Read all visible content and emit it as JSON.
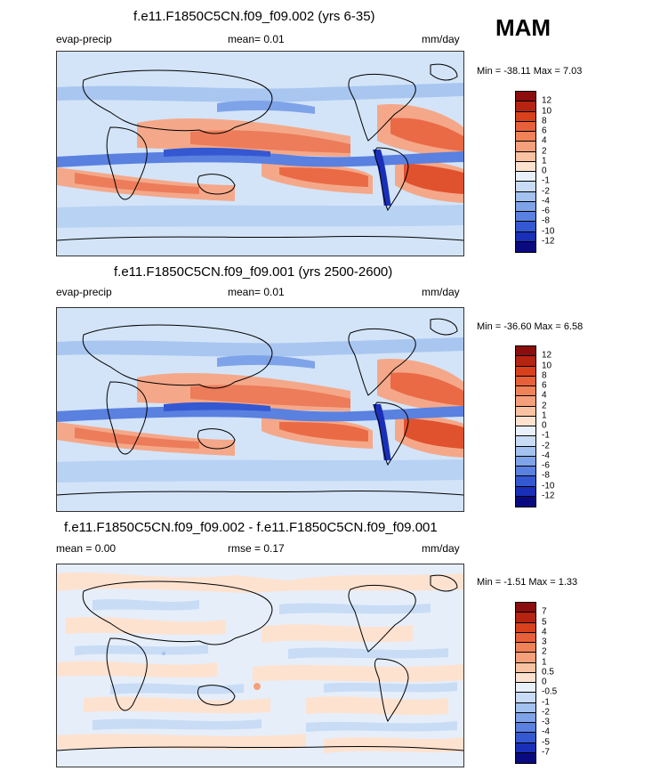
{
  "season": "MAM",
  "panels": [
    {
      "title": "f.e11.F1850C5CN.f09_f09.002 (yrs 6-35)",
      "left_label": "evap-precip",
      "mid_label": "mean=   0.01",
      "units": "mm/day",
      "minmax": "Min = -38.11 Max =   7.03",
      "colorbar": {
        "levels": [
          "12",
          "10",
          "8",
          "6",
          "4",
          "2",
          "1",
          "0",
          "-1",
          "-2",
          "-4",
          "-6",
          "-8",
          "-10",
          "-12"
        ],
        "colors": [
          "#8b0d0d",
          "#b52410",
          "#d8411c",
          "#e8603a",
          "#f08258",
          "#f5a07a",
          "#f9c3a3",
          "#fde2d0",
          "#e8f1fb",
          "#c8dcf5",
          "#a3c2ef",
          "#7fa3e8",
          "#5a80e0",
          "#3458d2",
          "#1a2fb8",
          "#0a0a80"
        ]
      }
    },
    {
      "title": "f.e11.F1850C5CN.f09_f09.001 (yrs 2500-2600)",
      "left_label": "evap-precip",
      "mid_label": "mean=   0.01",
      "units": "mm/day",
      "minmax": "Min = -36.60 Max =   6.58",
      "colorbar": {
        "levels": [
          "12",
          "10",
          "8",
          "6",
          "4",
          "2",
          "1",
          "0",
          "-1",
          "-2",
          "-4",
          "-6",
          "-8",
          "-10",
          "-12"
        ],
        "colors": [
          "#8b0d0d",
          "#b52410",
          "#d8411c",
          "#e8603a",
          "#f08258",
          "#f5a07a",
          "#f9c3a3",
          "#fde2d0",
          "#e8f1fb",
          "#c8dcf5",
          "#a3c2ef",
          "#7fa3e8",
          "#5a80e0",
          "#3458d2",
          "#1a2fb8",
          "#0a0a80"
        ]
      }
    },
    {
      "title": "f.e11.F1850C5CN.f09_f09.002 - f.e11.F1850C5CN.f09_f09.001",
      "left_label": "mean =   0.00",
      "mid_label": "rmse =   0.17",
      "units": "mm/day",
      "minmax": "Min =  -1.51 Max =   1.33",
      "colorbar": {
        "levels": [
          "7",
          "5",
          "4",
          "3",
          "2",
          "1",
          "0.5",
          "0",
          "-0.5",
          "-1",
          "-2",
          "-3",
          "-4",
          "-5",
          "-7"
        ],
        "colors": [
          "#8b0d0d",
          "#b52410",
          "#d8411c",
          "#e8603a",
          "#f08258",
          "#f5a07a",
          "#f9c3a3",
          "#fde2d0",
          "#e8f1fb",
          "#c8dcf5",
          "#a3c2ef",
          "#7fa3e8",
          "#5a80e0",
          "#3458d2",
          "#1a2fb8",
          "#0a0a80"
        ]
      }
    }
  ]
}
